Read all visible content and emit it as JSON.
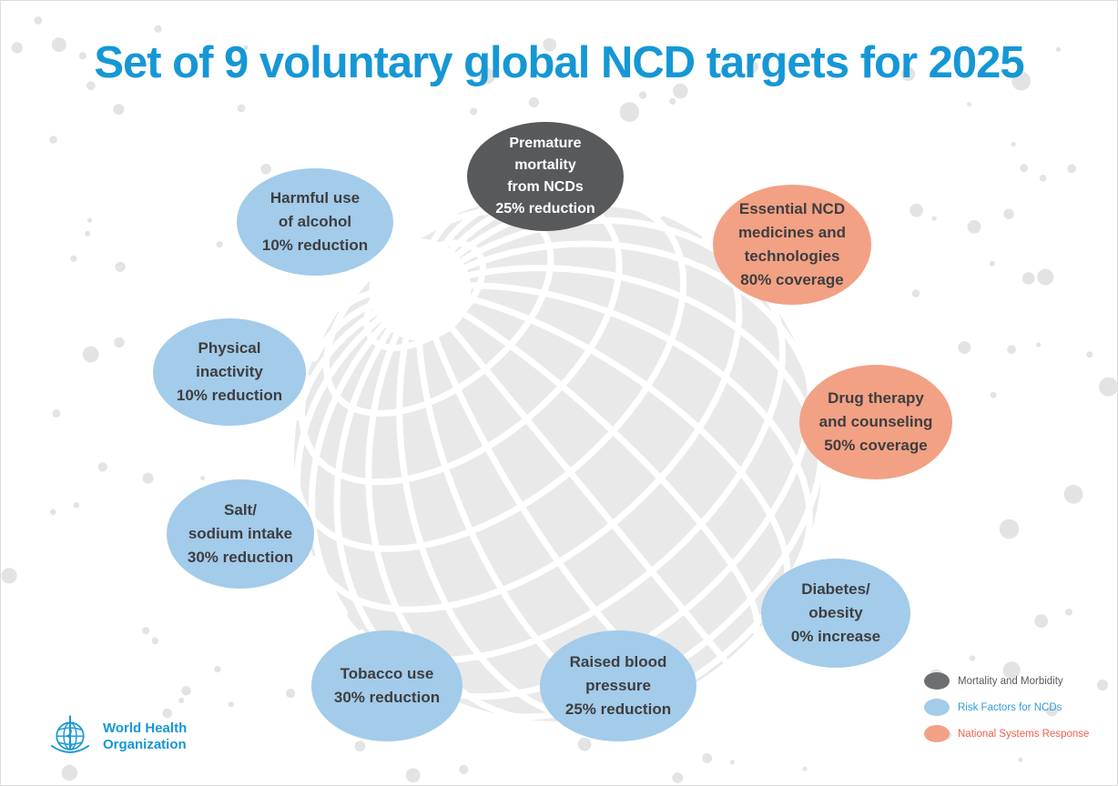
{
  "title": "Set of 9 voluntary global NCD targets for 2025",
  "colors": {
    "title_blue": "#1697d5",
    "mortality_fill": "#58595b",
    "risk_fill": "#a3cbea",
    "national_fill": "#f2a184",
    "bubble_text_dark": "#3e3e3f",
    "bubble_text_light": "#ffffff",
    "legend_mortality_fill": "#6d6e70",
    "legend_mortality_text": "#58595b",
    "legend_risk_text": "#2d9fd8",
    "legend_national_text": "#ee5f49",
    "globe_gray": "#e9e9ea",
    "dot_gray": "#e3e3e4"
  },
  "bubbles": [
    {
      "id": "premature-mortality-from-ncds",
      "category": "Mortality and Morbidity",
      "text": "Premature\nmortality\nfrom NCDs\n25% reduction"
    },
    {
      "id": "harmful-use-of-alcohol",
      "category": "Risk Factors for NCDs",
      "text": "Harmful use\nof alcohol\n10% reduction"
    },
    {
      "id": "physical-inactivity",
      "category": "Risk Factors for NCDs",
      "text": "Physical\ninactivity\n10% reduction"
    },
    {
      "id": "salt-sodium-intake",
      "category": "Risk Factors for NCDs",
      "text": "Salt/\nsodium intake\n30% reduction"
    },
    {
      "id": "tobacco-use",
      "category": "Risk Factors for NCDs",
      "text": "Tobacco use\n30% reduction"
    },
    {
      "id": "raised-blood-pressure",
      "category": "Risk Factors for NCDs",
      "text": "Raised blood\npressure\n25% reduction"
    },
    {
      "id": "diabetes-obesity",
      "category": "Risk Factors for NCDs",
      "text": "Diabetes/\nobesity\n0% increase"
    },
    {
      "id": "drug-therapy-and-counseling",
      "category": "National Systems Response",
      "text": "Drug therapy\nand counseling\n50% coverage"
    },
    {
      "id": "essential-ncd-medicines",
      "category": "National Systems Response",
      "text": "Essential NCD\nmedicines and\ntechnologies\n80% coverage"
    }
  ],
  "legend": {
    "items": [
      {
        "label": "Mortality and Morbidity"
      },
      {
        "label": "Risk Factors for NCDs"
      },
      {
        "label": "National Systems Response"
      }
    ]
  },
  "footer": {
    "org_name": "World Health\nOrganization"
  }
}
